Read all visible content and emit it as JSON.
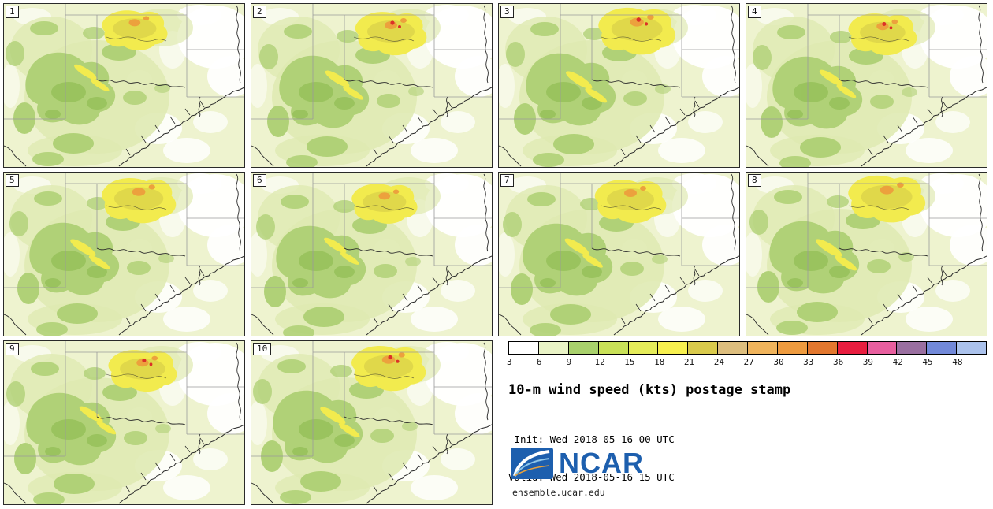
{
  "panels": [
    {
      "label": "1"
    },
    {
      "label": "2"
    },
    {
      "label": "3"
    },
    {
      "label": "4"
    },
    {
      "label": "5"
    },
    {
      "label": "6"
    },
    {
      "label": "7"
    },
    {
      "label": "8"
    },
    {
      "label": "9"
    },
    {
      "label": "10"
    }
  ],
  "legend": {
    "title": "10-m wind speed (kts) postage stamp",
    "init_line": " Init: Wed 2018-05-16 00 UTC",
    "valid_line": "Valid: Wed 2018-05-16 15 UTC"
  },
  "colorbar": {
    "ticks": [
      "3",
      "6",
      "9",
      "12",
      "15",
      "18",
      "21",
      "24",
      "27",
      "30",
      "33",
      "36",
      "39",
      "42",
      "45",
      "48"
    ],
    "colors": [
      "#ffffff",
      "#e9f3c6",
      "#a9d16c",
      "#c9e158",
      "#e5ec5a",
      "#f7f04f",
      "#d9ca4c",
      "#ddbe7e",
      "#f0b45c",
      "#ee9b3f",
      "#e2772e",
      "#e81d3f",
      "#e85f9f",
      "#9a6fa0",
      "#7289d9",
      "#abc2ec"
    ]
  },
  "branding": {
    "logo_text": "NCAR",
    "site": "ensemble.ucar.edu",
    "logo_blue": "#1d5fae"
  }
}
